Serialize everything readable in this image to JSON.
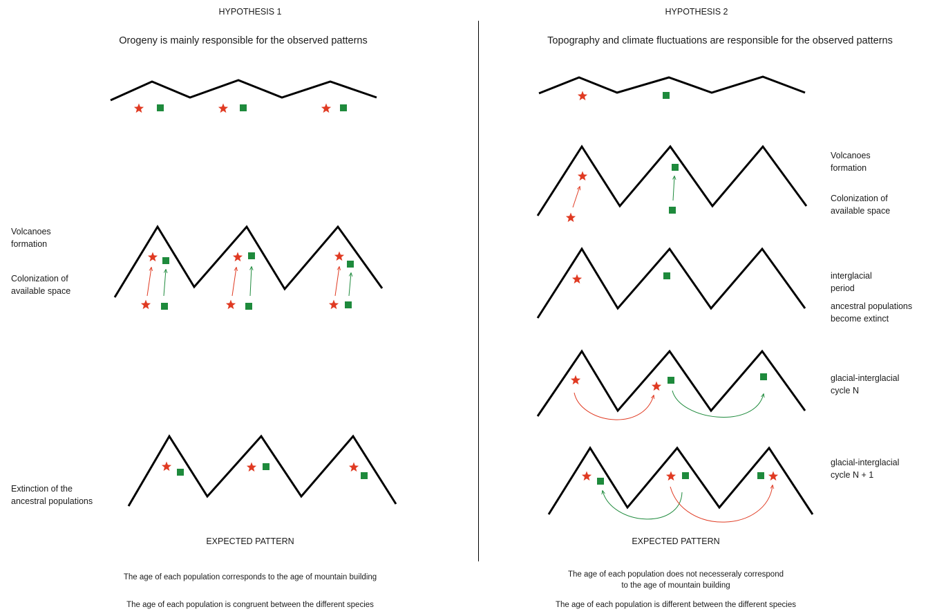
{
  "colors": {
    "species_red": "#e03a22",
    "species_green": "#1e8a3c",
    "mountain": "#000000"
  },
  "icons": {
    "species_a": "star-icon",
    "species_b": "square-icon"
  },
  "hypothesis1": {
    "title": "HYPOTHESIS 1",
    "subtitle": "Orogeny  is mainly responsible for the observed patterns",
    "label_volcanoes": [
      "Volcanoes",
      "formation"
    ],
    "label_colonization": [
      "Colonization of",
      "available space"
    ],
    "label_extinction": [
      "Extinction of the",
      "ancestral populations"
    ],
    "expected_pattern": "EXPECTED PATTERN",
    "conclusion_1": "The age of each population corresponds to the age of mountain building",
    "conclusion_2": "The age of each population is congruent between the different species"
  },
  "hypothesis2": {
    "title": "HYPOTHESIS 2",
    "subtitle": "Topography and climate fluctuations are responsible for the observed patterns",
    "label_volcanoes": [
      "Volcanoes",
      "formation"
    ],
    "label_colonization": [
      "Colonization of",
      "available space"
    ],
    "label_interglacial": [
      "interglacial",
      "period"
    ],
    "label_extinct": [
      "ancestral populations",
      "become extinct"
    ],
    "label_cycle_n": [
      "glacial-interglacial",
      "cycle N"
    ],
    "label_cycle_n1": [
      "glacial-interglacial",
      "cycle N + 1"
    ],
    "expected_pattern": "EXPECTED PATTERN",
    "conclusion_1": [
      "The age of each population does not necesseraly correspond",
      "to the age of mountain building"
    ],
    "conclusion_2": "The age of each population is different between the different species"
  }
}
